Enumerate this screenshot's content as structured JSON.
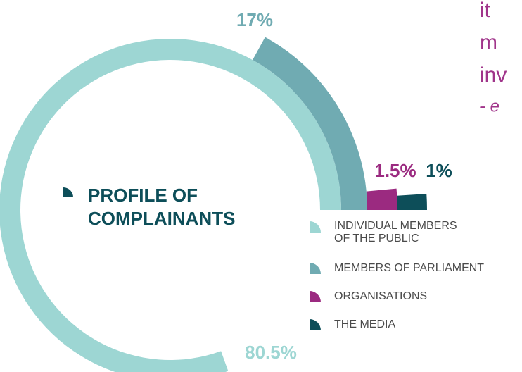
{
  "chart_data": {
    "type": "radial",
    "title_lines": [
      "PROFILE OF",
      "COMPLAINANTS"
    ],
    "categories": [
      "INDIVIDUAL MEMBERS OF THE PUBLIC",
      "MEMBERS OF PARLIAMENT",
      "ORGANISATIONS",
      "THE MEDIA"
    ],
    "values": [
      80.5,
      17,
      1.5,
      1
    ],
    "value_labels": [
      "80.5%",
      "17%",
      "1.5%",
      "1%"
    ],
    "colors": [
      "#9dd6d3",
      "#70abb2",
      "#9b2a80",
      "#0d4e59"
    ]
  },
  "quote": [
    "it",
    "m",
    "inv",
    "- e"
  ]
}
